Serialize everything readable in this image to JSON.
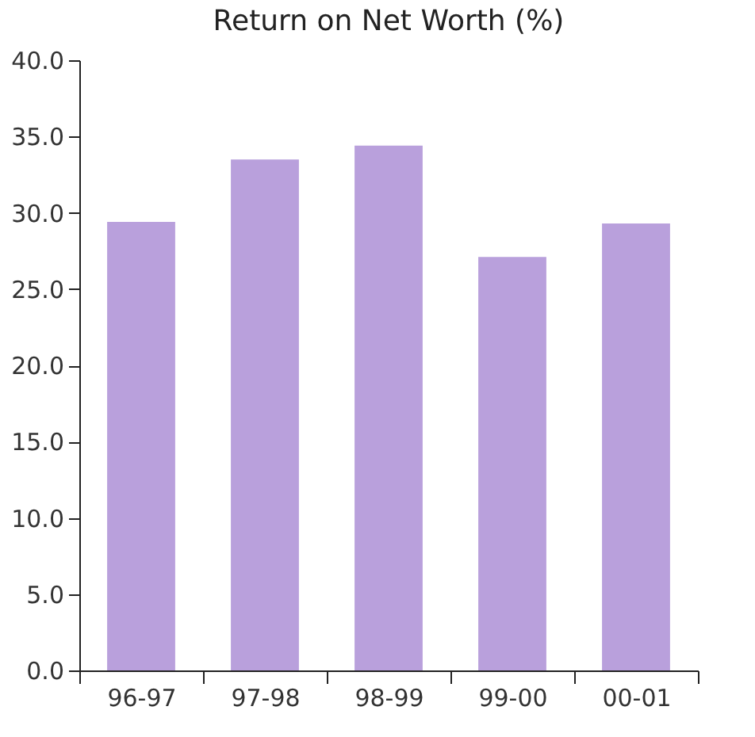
{
  "chart_data": {
    "type": "bar",
    "title": "Return on Net Worth (%)",
    "categories": [
      "96-97",
      "97-98",
      "98-99",
      "99-00",
      "00-01"
    ],
    "values": [
      29.4,
      33.5,
      34.4,
      27.1,
      29.3
    ],
    "color": "#b9a0dc",
    "ylim": [
      0,
      40
    ],
    "yticks": [
      {
        "value": 0,
        "label": "0.0"
      },
      {
        "value": 5,
        "label": "5.0"
      },
      {
        "value": 10,
        "label": "10.0"
      },
      {
        "value": 15,
        "label": "15.0"
      },
      {
        "value": 20,
        "label": "20.0"
      },
      {
        "value": 25,
        "label": "25.0"
      },
      {
        "value": 30,
        "label": "30.0"
      },
      {
        "value": 35,
        "label": "35.0"
      },
      {
        "value": 40,
        "label": "40.0"
      }
    ]
  }
}
